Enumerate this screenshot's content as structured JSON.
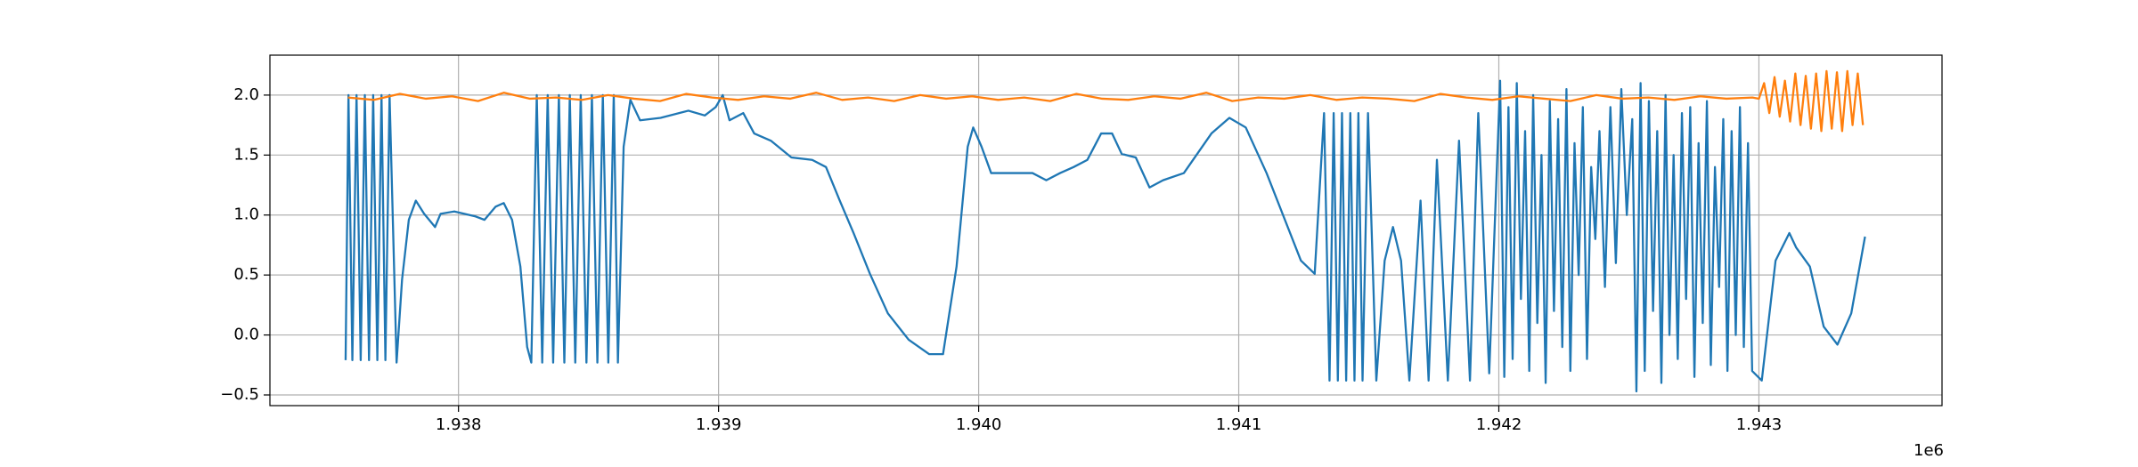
{
  "chart_data": {
    "type": "line",
    "x_offset_label": "1e6",
    "xlim": [
      1937275,
      1943704
    ],
    "ylim": [
      -0.589,
      2.333
    ],
    "xticks": [
      {
        "value": 1938000,
        "label": "1.938"
      },
      {
        "value": 1939000,
        "label": "1.939"
      },
      {
        "value": 1940000,
        "label": "1.940"
      },
      {
        "value": 1941000,
        "label": "1.941"
      },
      {
        "value": 1942000,
        "label": "1.942"
      },
      {
        "value": 1943000,
        "label": "1.943"
      }
    ],
    "yticks": [
      {
        "value": -0.5,
        "label": "−0.5"
      },
      {
        "value": 0,
        "label": "0.0"
      },
      {
        "value": 0.5,
        "label": "0.5"
      },
      {
        "value": 1,
        "label": "1.0"
      },
      {
        "value": 1.5,
        "label": "1.5"
      },
      {
        "value": 2,
        "label": "2.0"
      }
    ],
    "grid": true,
    "series": [
      {
        "color": "#1f77b4",
        "x": [
          1937566,
          1937577,
          1937592,
          1937608,
          1937624,
          1937640,
          1937656,
          1937672,
          1937688,
          1937704,
          1937719,
          1937735,
          1937762,
          1937783,
          1937809,
          1937836,
          1937868,
          1937910,
          1937931,
          1937984,
          1938063,
          1938100,
          1938143,
          1938174,
          1938206,
          1938238,
          1938264,
          1938280,
          1938301,
          1938322,
          1938343,
          1938364,
          1938386,
          1938407,
          1938428,
          1938449,
          1938470,
          1938492,
          1938513,
          1938534,
          1938555,
          1938576,
          1938597,
          1938613,
          1938635,
          1938661,
          1938698,
          1938777,
          1938884,
          1938947,
          1938989,
          1939016,
          1939042,
          1939095,
          1939137,
          1939201,
          1939280,
          1939360,
          1939413,
          1939466,
          1939519,
          1939582,
          1939651,
          1939731,
          1939810,
          1939863,
          1939915,
          1939958,
          1939979,
          1940011,
          1940048,
          1940127,
          1940207,
          1940260,
          1940313,
          1940365,
          1940418,
          1940471,
          1940513,
          1940550,
          1940604,
          1940657,
          1940709,
          1940789,
          1940895,
          1940964,
          1941027,
          1941107,
          1941239,
          1941292,
          1941328,
          1941349,
          1941365,
          1941381,
          1941397,
          1941413,
          1941429,
          1941445,
          1941460,
          1941476,
          1941497,
          1941529,
          1941561,
          1941593,
          1941624,
          1941656,
          1941699,
          1941730,
          1941762,
          1941804,
          1941847,
          1941889,
          1941921,
          1941963,
          1942005,
          1942021,
          1942037,
          1942053,
          1942069,
          1942085,
          1942101,
          1942117,
          1942132,
          1942148,
          1942164,
          1942180,
          1942196,
          1942212,
          1942228,
          1942244,
          1942260,
          1942275,
          1942291,
          1942307,
          1942323,
          1942339,
          1942355,
          1942371,
          1942387,
          1942408,
          1942429,
          1942450,
          1942471,
          1942492,
          1942513,
          1942529,
          1942545,
          1942561,
          1942577,
          1942593,
          1942609,
          1942625,
          1942641,
          1942656,
          1942672,
          1942688,
          1942704,
          1942720,
          1942736,
          1942752,
          1942768,
          1942784,
          1942800,
          1942815,
          1942831,
          1942847,
          1942863,
          1942879,
          1942895,
          1942911,
          1942927,
          1942942,
          1942958,
          1942974,
          1943011,
          1943064,
          1943117,
          1943143,
          1943196,
          1943249,
          1943302,
          1943355,
          1943408
        ],
        "values": [
          -0.21,
          2.0,
          -0.21,
          2.0,
          -0.21,
          2.0,
          -0.21,
          2.0,
          -0.21,
          2.0,
          -0.21,
          2.0,
          -0.23,
          0.46,
          0.96,
          1.12,
          1.01,
          0.9,
          1.01,
          1.03,
          0.99,
          0.96,
          1.07,
          1.1,
          0.96,
          0.57,
          -0.1,
          -0.23,
          2.0,
          -0.23,
          2.0,
          -0.23,
          2.0,
          -0.23,
          2.0,
          -0.23,
          2.0,
          -0.23,
          2.0,
          -0.23,
          2.0,
          -0.23,
          2.0,
          -0.23,
          1.57,
          1.96,
          1.79,
          1.81,
          1.87,
          1.83,
          1.9,
          2.0,
          1.79,
          1.85,
          1.68,
          1.62,
          1.48,
          1.46,
          1.4,
          1.12,
          0.85,
          0.51,
          0.18,
          -0.04,
          -0.16,
          -0.16,
          0.57,
          1.57,
          1.73,
          1.57,
          1.35,
          1.35,
          1.35,
          1.29,
          1.35,
          1.4,
          1.46,
          1.68,
          1.68,
          1.51,
          1.48,
          1.23,
          1.29,
          1.35,
          1.68,
          1.81,
          1.73,
          1.35,
          0.62,
          0.51,
          1.85,
          -0.38,
          1.85,
          -0.38,
          1.85,
          -0.38,
          1.85,
          -0.38,
          1.85,
          -0.38,
          1.85,
          -0.38,
          0.62,
          0.9,
          0.62,
          -0.38,
          1.12,
          -0.38,
          1.46,
          -0.38,
          1.62,
          -0.38,
          1.85,
          -0.32,
          2.12,
          -0.35,
          1.9,
          -0.2,
          2.1,
          0.3,
          1.7,
          -0.3,
          2.0,
          0.1,
          1.5,
          -0.4,
          1.95,
          0.2,
          1.8,
          -0.1,
          2.05,
          -0.3,
          1.6,
          0.5,
          1.9,
          -0.2,
          1.4,
          0.8,
          1.7,
          0.4,
          1.9,
          0.6,
          2.05,
          1.0,
          1.8,
          -0.47,
          2.1,
          -0.3,
          1.95,
          0.2,
          1.7,
          -0.4,
          2.0,
          0.0,
          1.5,
          -0.2,
          1.85,
          0.3,
          1.9,
          -0.35,
          1.6,
          0.1,
          1.95,
          -0.25,
          1.4,
          0.4,
          1.8,
          -0.3,
          1.7,
          0.0,
          1.9,
          -0.1,
          1.6,
          -0.3,
          -0.38,
          0.62,
          0.85,
          0.73,
          0.57,
          0.07,
          -0.08,
          0.18,
          0.82
        ]
      },
      {
        "color": "#ff7f0e",
        "x": [
          1937575,
          1937675,
          1937775,
          1937875,
          1937975,
          1938075,
          1938175,
          1938275,
          1938375,
          1938475,
          1938575,
          1938675,
          1938775,
          1938875,
          1938975,
          1939075,
          1939175,
          1939275,
          1939375,
          1939475,
          1939575,
          1939675,
          1939775,
          1939875,
          1939975,
          1940075,
          1940175,
          1940275,
          1940375,
          1940475,
          1940575,
          1940675,
          1940775,
          1940875,
          1940975,
          1941075,
          1941175,
          1941275,
          1941375,
          1941475,
          1941575,
          1941675,
          1941775,
          1941875,
          1941975,
          1942075,
          1942175,
          1942275,
          1942375,
          1942475,
          1942575,
          1942675,
          1942775,
          1942875,
          1942975,
          1943000,
          1943020,
          1943040,
          1943060,
          1943080,
          1943100,
          1943120,
          1943140,
          1943160,
          1943180,
          1943200,
          1943220,
          1943240,
          1943260,
          1943280,
          1943300,
          1943320,
          1943340,
          1943360,
          1943380,
          1943400
        ],
        "values": [
          1.98,
          1.96,
          2.01,
          1.97,
          1.99,
          1.95,
          2.02,
          1.97,
          1.98,
          1.96,
          2.0,
          1.97,
          1.95,
          2.01,
          1.98,
          1.96,
          1.99,
          1.97,
          2.02,
          1.96,
          1.98,
          1.95,
          2.0,
          1.97,
          1.99,
          1.96,
          1.98,
          1.95,
          2.01,
          1.97,
          1.96,
          1.99,
          1.97,
          2.02,
          1.95,
          1.98,
          1.97,
          2.0,
          1.96,
          1.98,
          1.97,
          1.95,
          2.01,
          1.98,
          1.96,
          1.99,
          1.97,
          1.95,
          2.0,
          1.97,
          1.98,
          1.96,
          1.99,
          1.97,
          1.98,
          1.97,
          2.1,
          1.85,
          2.15,
          1.82,
          2.12,
          1.78,
          2.18,
          1.75,
          2.16,
          1.72,
          2.18,
          1.7,
          2.2,
          1.72,
          2.19,
          1.7,
          2.2,
          1.75,
          2.18,
          1.75
        ]
      }
    ]
  }
}
